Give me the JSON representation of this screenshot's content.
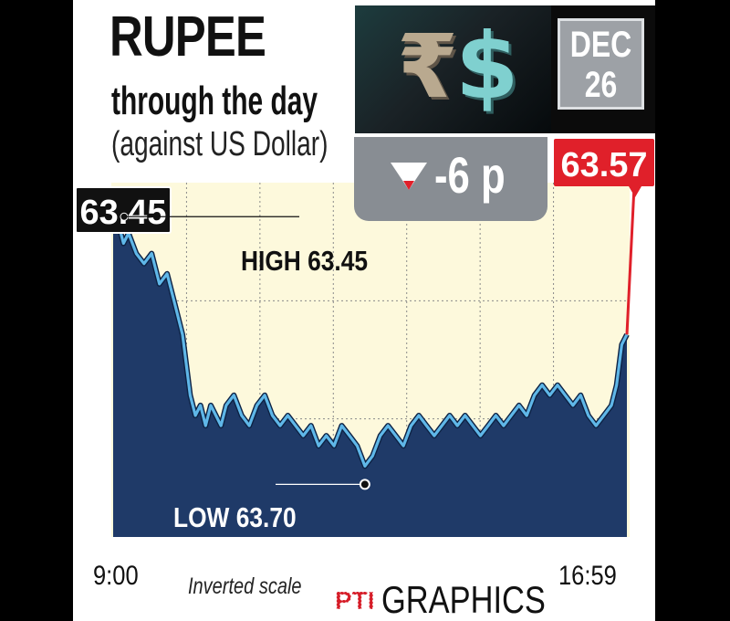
{
  "header": {
    "title": "RUPEE",
    "subtitle": "through the day",
    "comparison": "(against US Dollar)"
  },
  "date": {
    "month": "DEC",
    "day": "26"
  },
  "change": {
    "direction": "down",
    "text": "-6 p"
  },
  "icons": {
    "rupee": "₹",
    "dollar": "$"
  },
  "footer": {
    "note": "Inverted scale",
    "brand_mark": "PTI",
    "brand_text": "GRAPHICS"
  },
  "chart_data": {
    "type": "area",
    "title": "RUPEE through the day",
    "x_start_label": "9:00",
    "x_end_label": "16:59",
    "y_inverted": true,
    "ylim": [
      63.42,
      63.77
    ],
    "grid": true,
    "open": {
      "label": "63.45",
      "value": 63.45
    },
    "close": {
      "label": "63.57",
      "value": 63.57
    },
    "high": {
      "label": "HIGH 63.45",
      "value": 63.45
    },
    "low": {
      "label": "LOW 63.70",
      "value": 63.7
    },
    "colors": {
      "area": "#1f3a68",
      "line": "#5fb7e8",
      "close": "#e0202a",
      "background": "#fdf9dc",
      "label_bg": "#111111"
    },
    "series": [
      {
        "x": [
          0,
          0.01,
          0.02,
          0.03,
          0.045,
          0.06,
          0.075,
          0.09,
          0.105,
          0.12,
          0.135,
          0.15,
          0.16,
          0.17,
          0.18,
          0.19,
          0.2,
          0.21,
          0.22,
          0.235,
          0.25,
          0.265,
          0.28,
          0.295,
          0.31,
          0.325,
          0.34,
          0.355,
          0.37,
          0.385,
          0.4,
          0.415,
          0.43,
          0.445,
          0.46,
          0.475,
          0.49,
          0.505,
          0.52,
          0.535,
          0.55,
          0.565,
          0.58,
          0.595,
          0.61,
          0.625,
          0.64,
          0.655,
          0.67,
          0.685,
          0.7,
          0.715,
          0.73,
          0.745,
          0.76,
          0.775,
          0.79,
          0.805,
          0.82,
          0.835,
          0.85,
          0.865,
          0.88,
          0.895,
          0.91,
          0.925,
          0.94,
          0.955,
          0.97,
          0.98,
          0.99,
          1.0
        ],
        "y": [
          63.45,
          63.46,
          63.48,
          63.47,
          63.49,
          63.5,
          63.49,
          63.52,
          63.51,
          63.54,
          63.57,
          63.63,
          63.65,
          63.64,
          63.66,
          63.64,
          63.65,
          63.66,
          63.64,
          63.63,
          63.65,
          63.66,
          63.64,
          63.63,
          63.65,
          63.66,
          63.65,
          63.66,
          63.67,
          63.66,
          63.68,
          63.67,
          63.68,
          63.66,
          63.67,
          63.68,
          63.7,
          63.69,
          63.67,
          63.66,
          63.67,
          63.68,
          63.66,
          63.65,
          63.66,
          63.67,
          63.66,
          63.65,
          63.66,
          63.65,
          63.66,
          63.67,
          63.66,
          63.65,
          63.66,
          63.65,
          63.64,
          63.65,
          63.63,
          63.62,
          63.63,
          63.62,
          63.63,
          63.64,
          63.63,
          63.65,
          63.66,
          63.65,
          63.64,
          63.62,
          63.58,
          63.57
        ]
      }
    ]
  }
}
